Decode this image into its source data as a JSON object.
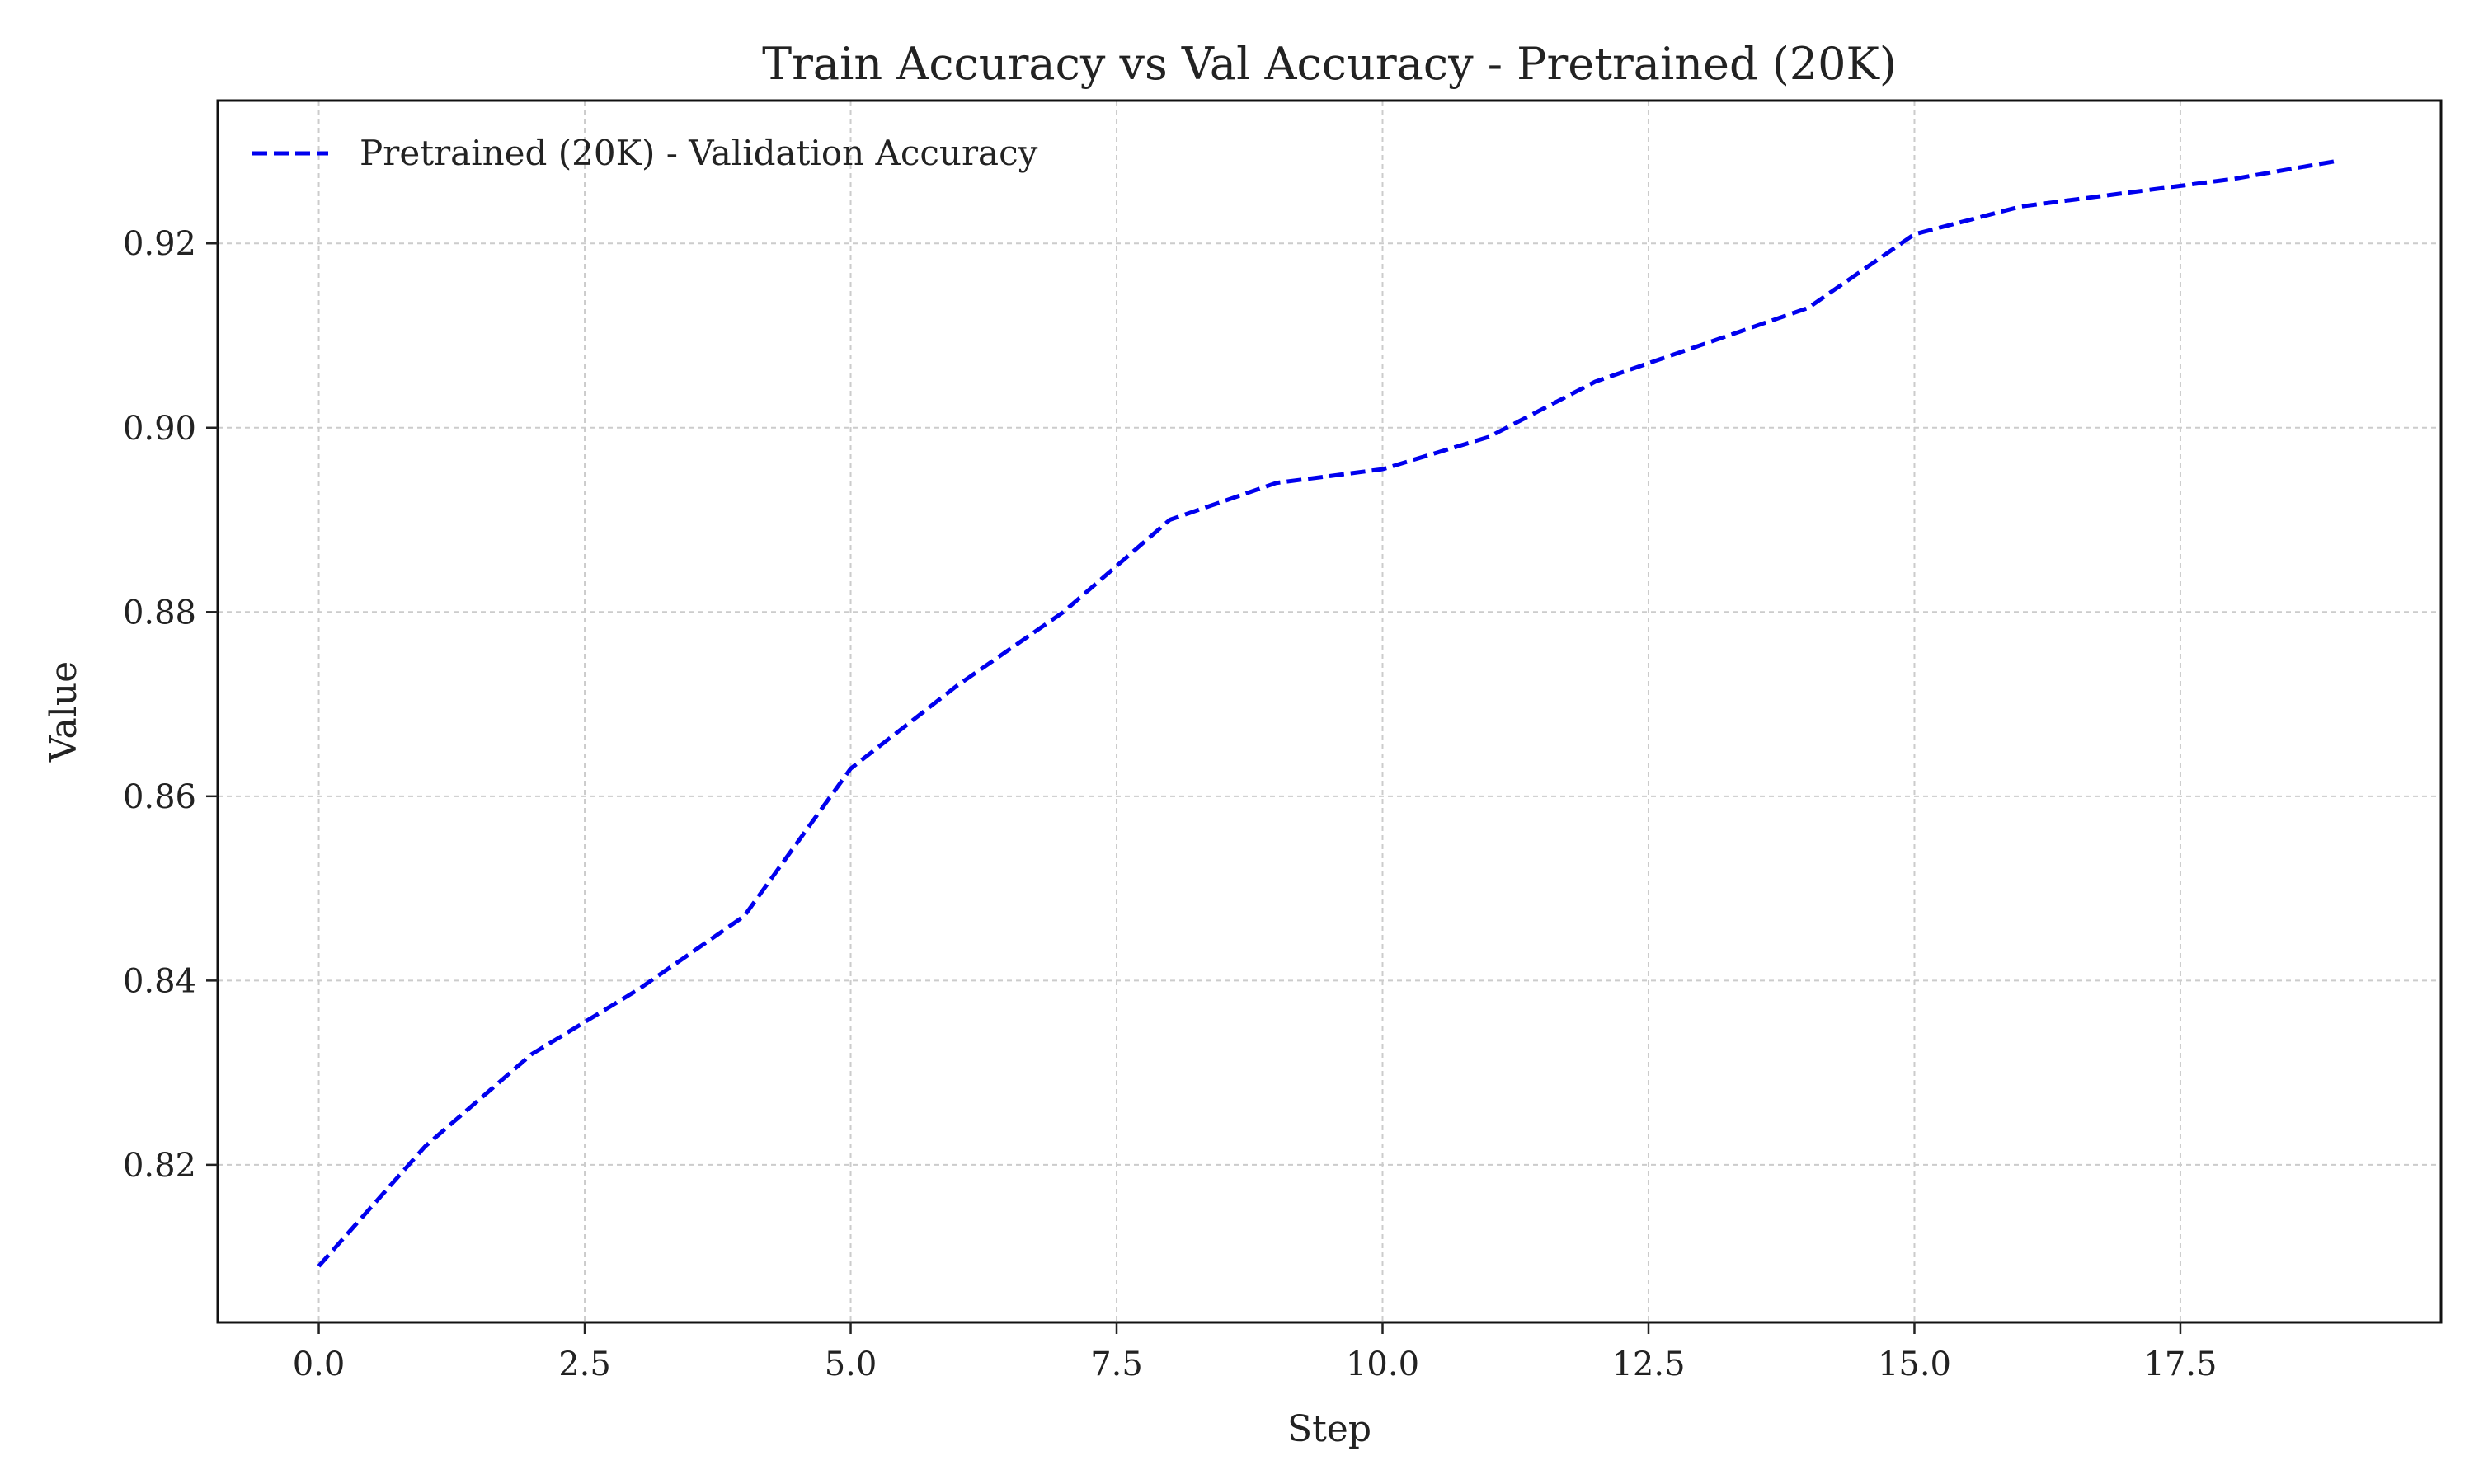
{
  "chart_data": {
    "type": "line",
    "title": "Train Accuracy vs Val Accuracy - Pretrained (20K)",
    "xlabel": "Step",
    "ylabel": "Value",
    "xlim": [
      -0.95,
      19.95
    ],
    "ylim": [
      0.8029,
      0.9355
    ],
    "xticks": [
      0.0,
      2.5,
      5.0,
      7.5,
      10.0,
      12.5,
      15.0,
      17.5
    ],
    "xtick_labels": [
      "0.0",
      "2.5",
      "5.0",
      "7.5",
      "10.0",
      "12.5",
      "15.0",
      "17.5"
    ],
    "yticks": [
      0.82,
      0.84,
      0.86,
      0.88,
      0.9,
      0.92
    ],
    "ytick_labels": [
      "0.82",
      "0.84",
      "0.86",
      "0.88",
      "0.90",
      "0.92"
    ],
    "grid": true,
    "legend_position": "top-left",
    "x": [
      0,
      1,
      2,
      3,
      4,
      5,
      6,
      7,
      8,
      9,
      10,
      11,
      12,
      13,
      14,
      15,
      16,
      17,
      18,
      19
    ],
    "series": [
      {
        "name": "Pretrained (20K) - Validation Accuracy",
        "color": "#0000ee",
        "line_style": "dashed",
        "values": [
          0.809,
          0.822,
          0.832,
          0.839,
          0.847,
          0.863,
          0.872,
          0.88,
          0.89,
          0.894,
          0.8955,
          0.899,
          0.905,
          0.909,
          0.913,
          0.921,
          0.924,
          0.9255,
          0.927,
          0.929
        ]
      }
    ]
  }
}
